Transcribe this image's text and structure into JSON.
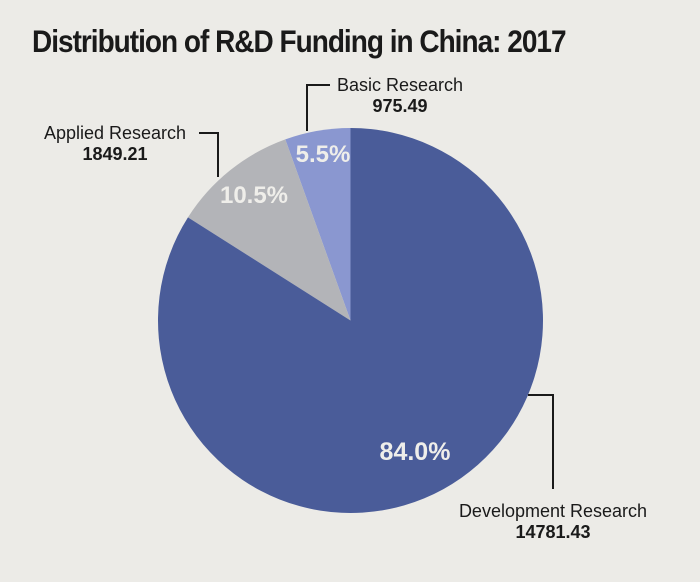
{
  "colors": {
    "background": "#ECEBE7",
    "text": "#1A1A1A",
    "callout_line": "#1A1A1A",
    "percent_text": "#EFEEEA"
  },
  "chart_data": {
    "type": "pie",
    "title": "Distribution of R&D Funding in China: 2017",
    "start_angle_deg": 90,
    "direction": "counterclockwise",
    "legend_position": "none",
    "slices": [
      {
        "label": "Basic Research",
        "value": 975.49,
        "value_label": "975.49",
        "percent": 5.5,
        "percent_label": "5.5%",
        "color": "#8A97D0"
      },
      {
        "label": "Applied Research",
        "value": 1849.21,
        "value_label": "1849.21",
        "percent": 10.5,
        "percent_label": "10.5%",
        "color": "#B3B4B8"
      },
      {
        "label": "Development Research",
        "value": 14781.43,
        "value_label": "14781.43",
        "percent": 84.0,
        "percent_label": "84.0%",
        "color": "#4A5C99"
      }
    ]
  }
}
